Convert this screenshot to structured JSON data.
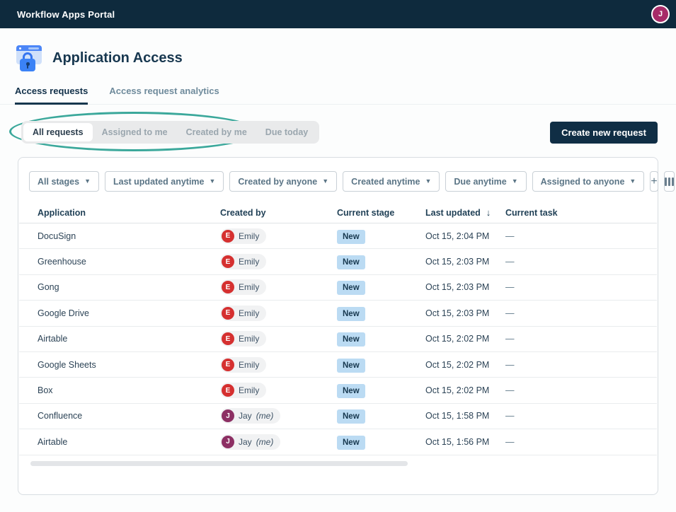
{
  "navbar": {
    "title": "Workflow Apps Portal",
    "avatar_initial": "J",
    "avatar_color": "#a72b68",
    "bg_color": "#0e2a3d"
  },
  "header": {
    "title": "Application Access",
    "icon": "browser-lock-icon"
  },
  "tabs": [
    {
      "label": "Access requests",
      "active": true
    },
    {
      "label": "Access request analytics",
      "active": false
    }
  ],
  "segments": [
    {
      "label": "All requests",
      "active": true
    },
    {
      "label": "Assigned to me",
      "active": false
    },
    {
      "label": "Created by me",
      "active": false
    },
    {
      "label": "Due today",
      "active": false
    }
  ],
  "annotation": {
    "shape": "ellipse",
    "color": "#3ba89b"
  },
  "create_button": "Create new request",
  "filters": [
    {
      "label": "All stages"
    },
    {
      "label": "Last updated anytime"
    },
    {
      "label": "Created by anyone"
    },
    {
      "label": "Created anytime"
    },
    {
      "label": "Due anytime"
    },
    {
      "label": "Assigned to anyone"
    }
  ],
  "add_filter_label": "+",
  "table": {
    "columns": [
      "Application",
      "Created by",
      "Current stage",
      "Last updated",
      "Current task"
    ],
    "sort_column": "Last updated",
    "sort_icon": "↓",
    "stage_badge_bg": "#bbdbf3",
    "rows": [
      {
        "application": "DocuSign",
        "created_by": "Emily",
        "creator_initial": "E",
        "creator_color": "#d53030",
        "me_label": "",
        "stage": "New",
        "last_updated": "Oct 15, 2:04 PM",
        "task": "—"
      },
      {
        "application": "Greenhouse",
        "created_by": "Emily",
        "creator_initial": "E",
        "creator_color": "#d53030",
        "me_label": "",
        "stage": "New",
        "last_updated": "Oct 15, 2:03 PM",
        "task": "—"
      },
      {
        "application": "Gong",
        "created_by": "Emily",
        "creator_initial": "E",
        "creator_color": "#d53030",
        "me_label": "",
        "stage": "New",
        "last_updated": "Oct 15, 2:03 PM",
        "task": "—"
      },
      {
        "application": "Google Drive",
        "created_by": "Emily",
        "creator_initial": "E",
        "creator_color": "#d53030",
        "me_label": "",
        "stage": "New",
        "last_updated": "Oct 15, 2:03 PM",
        "task": "—"
      },
      {
        "application": "Airtable",
        "created_by": "Emily",
        "creator_initial": "E",
        "creator_color": "#d53030",
        "me_label": "",
        "stage": "New",
        "last_updated": "Oct 15, 2:02 PM",
        "task": "—"
      },
      {
        "application": "Google Sheets",
        "created_by": "Emily",
        "creator_initial": "E",
        "creator_color": "#d53030",
        "me_label": "",
        "stage": "New",
        "last_updated": "Oct 15, 2:02 PM",
        "task": "—"
      },
      {
        "application": "Box",
        "created_by": "Emily",
        "creator_initial": "E",
        "creator_color": "#d53030",
        "me_label": "",
        "stage": "New",
        "last_updated": "Oct 15, 2:02 PM",
        "task": "—"
      },
      {
        "application": "Confluence",
        "created_by": "Jay",
        "creator_initial": "J",
        "creator_color": "#8c2f63",
        "me_label": "(me)",
        "stage": "New",
        "last_updated": "Oct 15, 1:58 PM",
        "task": "—"
      },
      {
        "application": "Airtable",
        "created_by": "Jay",
        "creator_initial": "J",
        "creator_color": "#8c2f63",
        "me_label": "(me)",
        "stage": "New",
        "last_updated": "Oct 15, 1:56 PM",
        "task": "—"
      }
    ]
  },
  "colors": {
    "accent_navy": "#102e45",
    "annotation_teal": "#3ba89b",
    "badge_blue": "#bbdbf3",
    "emily_red": "#d53030",
    "jay_plum": "#8c2f63"
  }
}
